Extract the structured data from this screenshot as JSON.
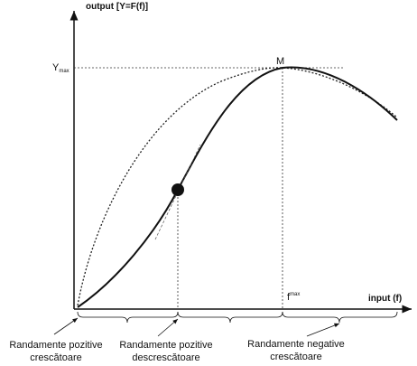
{
  "axes": {
    "y_label": "output [Y=F(f)]",
    "x_label": "input (f)"
  },
  "markers": {
    "y_max": {
      "text": "Y",
      "sub": "max"
    },
    "point": "M",
    "f_max": {
      "text": "f",
      "sub": "max"
    }
  },
  "regions": [
    {
      "line1": "Randamente pozitive",
      "line2": "crescătoare"
    },
    {
      "line1": "Randamente pozitive",
      "line2": "descrescătoare"
    },
    {
      "line1": "Randamente negative",
      "line2": "crescătoare"
    }
  ]
}
